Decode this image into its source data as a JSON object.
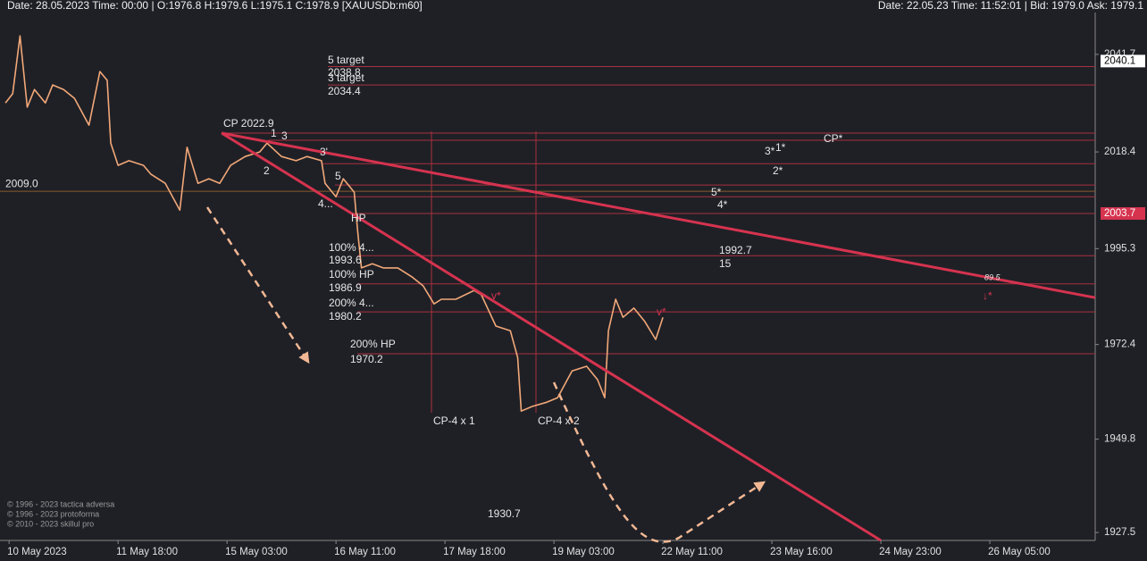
{
  "header": {
    "left": "Date: 28.05.2023 Time: 00:00 | O:1976.8 H:1979.6 L:1975.1 C:1978.9 [XAUUSDb:m60]",
    "right": "Date: 22.05.23 Time: 11:52:01 | Bid: 1979.0 Ask: 1979.1"
  },
  "copyright": [
    "© 1996 - 2023 tactica adversa",
    "© 1996 - 2023 protoforma",
    "© 2010 - 2023 skillul pro"
  ],
  "chart_data": {
    "type": "line",
    "xlim": [
      -2.5,
      299
    ],
    "xticks": [
      {
        "value": 0,
        "label": "10 May 2023"
      },
      {
        "value": 30,
        "label": "11 May 18:00"
      },
      {
        "value": 60,
        "label": "15 May 03:00"
      },
      {
        "value": 90,
        "label": "16 May 11:00"
      },
      {
        "value": 120,
        "label": "17 May 18:00"
      },
      {
        "value": 150,
        "label": "19 May 03:00"
      },
      {
        "value": 180,
        "label": "22 May 11:00"
      },
      {
        "value": 210,
        "label": "23 May 16:00"
      },
      {
        "value": 240,
        "label": "24 May 23:00"
      },
      {
        "value": 270,
        "label": "26 May 05:00"
      }
    ],
    "ylim": [
      1925.6,
      2051.7
    ],
    "yticks": [
      2041.7,
      2018.4,
      1995.3,
      1972.4,
      1949.8,
      1927.5
    ],
    "price_markers": [
      {
        "value": 2040.1,
        "color": "#ffffff"
      },
      {
        "value": 2003.7,
        "color": "#d6334f"
      }
    ],
    "series": [
      {
        "name": "XAUUSDb",
        "color": "#f2a878",
        "x": [
          -1,
          1,
          3,
          5,
          7,
          10,
          12,
          15,
          18,
          22,
          25,
          27,
          28,
          30,
          33,
          37,
          39,
          43,
          47,
          49,
          52,
          55,
          58,
          61,
          65,
          69,
          71,
          75,
          79,
          82,
          86,
          87,
          90,
          92,
          95,
          96,
          97,
          100,
          103,
          107,
          111,
          114,
          117,
          119,
          123,
          128,
          130,
          134,
          138,
          140,
          141,
          144,
          148,
          151,
          155,
          159,
          162,
          164,
          165,
          167,
          169,
          172,
          175,
          178,
          180
        ],
        "values": [
          2030.1,
          2032.3,
          2046.1,
          2029.1,
          2033.3,
          2030.1,
          2034.4,
          2033.3,
          2031.2,
          2024.8,
          2037.6,
          2035.5,
          2020.5,
          2015.2,
          2016.3,
          2015.2,
          2013.1,
          2010.9,
          2004.5,
          2019.5,
          2010.9,
          2012.0,
          2010.9,
          2015.2,
          2017.3,
          2018.4,
          2020.5,
          2017.3,
          2016.3,
          2017.3,
          2016.3,
          2010.9,
          2007.7,
          2012.0,
          2008.8,
          1999.2,
          1990.7,
          1991.7,
          1990.7,
          1990.7,
          1988.5,
          1986.4,
          1982.1,
          1983.2,
          1983.2,
          1985.3,
          1984.3,
          1976.8,
          1975.7,
          1969.3,
          1956.5,
          1957.6,
          1958.6,
          1959.7,
          1966.1,
          1967.2,
          1964.0,
          1959.7,
          1975.7,
          1983.2,
          1978.9,
          1981.1,
          1977.9,
          1973.6,
          1978.9
        ]
      }
    ],
    "trendlines": [
      {
        "color": "#d6334f",
        "x": [
          58.5,
          299
        ],
        "values": [
          2022.9,
          1983.6
        ]
      },
      {
        "color": "#d6334f",
        "x": [
          58.5,
          240
        ],
        "values": [
          2022.9,
          1925.6
        ]
      }
    ],
    "levels": [
      2038.8,
      2034.4,
      2022.9,
      2021.2,
      2015.6,
      2010.5,
      2007.7,
      2003.7,
      1993.6,
      1986.9,
      1980.2,
      1970.2
    ],
    "level_color": "#a8303f",
    "base_level": {
      "value": 2009.0,
      "label": "2009.0",
      "color": "#8a5a2a"
    },
    "annotations": [
      "5 target",
      "2038.8",
      "3 target",
      "2034.4",
      "CP  2022.9",
      "1",
      "3",
      "2",
      "3'",
      "5",
      "4...",
      "HP",
      "100%  4...",
      "1993.6",
      "100% HP",
      "1986.9",
      "200%  4...",
      "1980.2",
      "200% HP",
      "1970.2",
      "CP-4 x 1",
      "CP-4 x 2",
      "1930.7",
      "3*",
      "1*",
      "2*",
      "5*",
      "4*",
      "CP*",
      "1992.7",
      "15",
      "89.5",
      "v*",
      "v*",
      "↓*"
    ]
  }
}
